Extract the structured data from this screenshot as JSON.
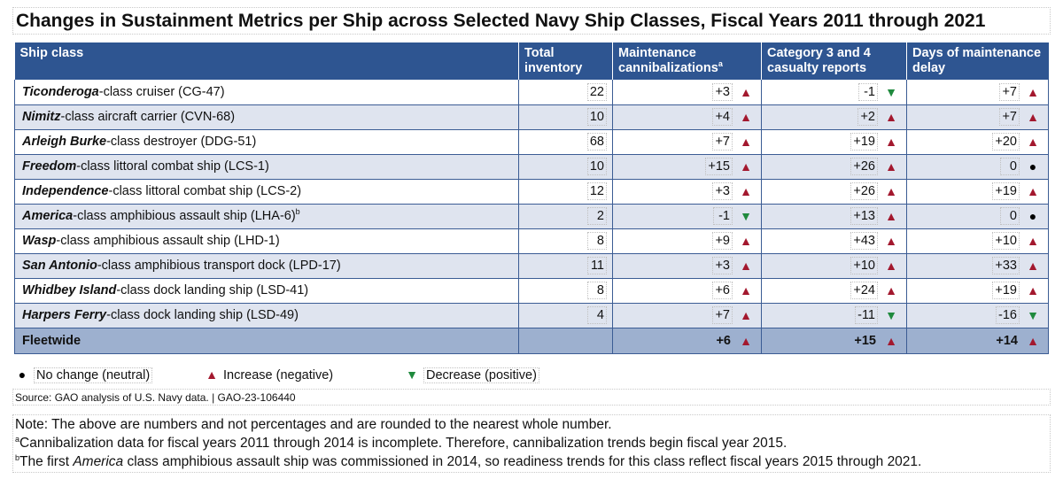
{
  "title": "Changes in Sustainment Metrics per Ship across Selected Navy Ship Classes, Fiscal Years 2011 through 2021",
  "table": {
    "headers": {
      "ship_class": "Ship class",
      "inventory": "Total inventory",
      "cannibalizations": "Maintenance cannibalizations",
      "cannibalizations_sup": "a",
      "casualty": "Category 3 and 4 casualty reports",
      "delay": "Days of maintenance delay"
    },
    "rows": [
      {
        "name_bold": "Ticonderoga",
        "name_rest": "-class cruiser (CG-47)",
        "sup": "",
        "inventory": "22",
        "cann": "+3",
        "cann_trend": "up",
        "cas": "-1",
        "cas_trend": "down",
        "delay": "+7",
        "delay_trend": "up"
      },
      {
        "name_bold": "Nimitz",
        "name_rest": "-class aircraft carrier (CVN-68)",
        "sup": "",
        "inventory": "10",
        "cann": "+4",
        "cann_trend": "up",
        "cas": "+2",
        "cas_trend": "up",
        "delay": "+7",
        "delay_trend": "up"
      },
      {
        "name_bold": "Arleigh Burke",
        "name_rest": "-class destroyer (DDG-51)",
        "sup": "",
        "inventory": "68",
        "cann": "+7",
        "cann_trend": "up",
        "cas": "+19",
        "cas_trend": "up",
        "delay": "+20",
        "delay_trend": "up"
      },
      {
        "name_bold": "Freedom",
        "name_rest": "-class littoral combat ship (LCS-1)",
        "sup": "",
        "inventory": "10",
        "cann": "+15",
        "cann_trend": "up",
        "cas": "+26",
        "cas_trend": "up",
        "delay": "0",
        "delay_trend": "neutral"
      },
      {
        "name_bold": "Independence",
        "name_rest": "-class littoral combat ship (LCS-2)",
        "sup": "",
        "inventory": "12",
        "cann": "+3",
        "cann_trend": "up",
        "cas": "+26",
        "cas_trend": "up",
        "delay": "+19",
        "delay_trend": "up"
      },
      {
        "name_bold": "America",
        "name_rest": "-class amphibious assault ship (LHA-6)",
        "sup": "b",
        "inventory": "2",
        "cann": "-1",
        "cann_trend": "down",
        "cas": "+13",
        "cas_trend": "up",
        "delay": "0",
        "delay_trend": "neutral"
      },
      {
        "name_bold": "Wasp",
        "name_rest": "-class amphibious assault ship (LHD-1)",
        "sup": "",
        "inventory": "8",
        "cann": "+9",
        "cann_trend": "up",
        "cas": "+43",
        "cas_trend": "up",
        "delay": "+10",
        "delay_trend": "up"
      },
      {
        "name_bold": "San Antonio",
        "name_rest": "-class amphibious transport dock (LPD-17)",
        "sup": "",
        "inventory": "11",
        "cann": "+3",
        "cann_trend": "up",
        "cas": "+10",
        "cas_trend": "up",
        "delay": "+33",
        "delay_trend": "up"
      },
      {
        "name_bold": "Whidbey Island",
        "name_rest": "-class dock landing ship (LSD-41)",
        "sup": "",
        "inventory": "8",
        "cann": "+6",
        "cann_trend": "up",
        "cas": "+24",
        "cas_trend": "up",
        "delay": "+19",
        "delay_trend": "up"
      },
      {
        "name_bold": "Harpers Ferry",
        "name_rest": "-class dock landing ship (LSD-49)",
        "sup": "",
        "inventory": "4",
        "cann": "+7",
        "cann_trend": "up",
        "cas": "-11",
        "cas_trend": "down",
        "delay": "-16",
        "delay_trend": "down"
      }
    ],
    "fleetwide": {
      "label": "Fleetwide",
      "cann": "+6",
      "cann_trend": "up",
      "cas": "+15",
      "cas_trend": "up",
      "delay": "+14",
      "delay_trend": "up"
    }
  },
  "legend": {
    "neutral": "No change (neutral)",
    "increase": "Increase (negative)",
    "decrease": "Decrease (positive)"
  },
  "icons": {
    "up": "triangle-up-icon",
    "down": "triangle-down-icon",
    "neutral": "circle-icon"
  },
  "colors": {
    "header": "#2e5591",
    "row_alt": "#dfe4ef",
    "fleet": "#9db0cf",
    "increase": "#a3182e",
    "decrease": "#1f8a3d",
    "neutral": "#000000"
  },
  "source": "Source: GAO analysis of U.S. Navy data.  |  GAO-23-106440",
  "notes": {
    "main": "Note: The above are numbers and not percentages and are rounded to the nearest whole number.",
    "a_marker": "a",
    "a_text": "Cannibalization data for fiscal years 2011 through 2014 is incomplete. Therefore, cannibalization trends begin fiscal year 2015.",
    "b_marker": "b",
    "b_pre": "The first ",
    "b_italic": "America",
    "b_post": " class amphibious assault ship was commissioned in 2014, so readiness trends for this class reflect fiscal years 2015 through 2021."
  }
}
